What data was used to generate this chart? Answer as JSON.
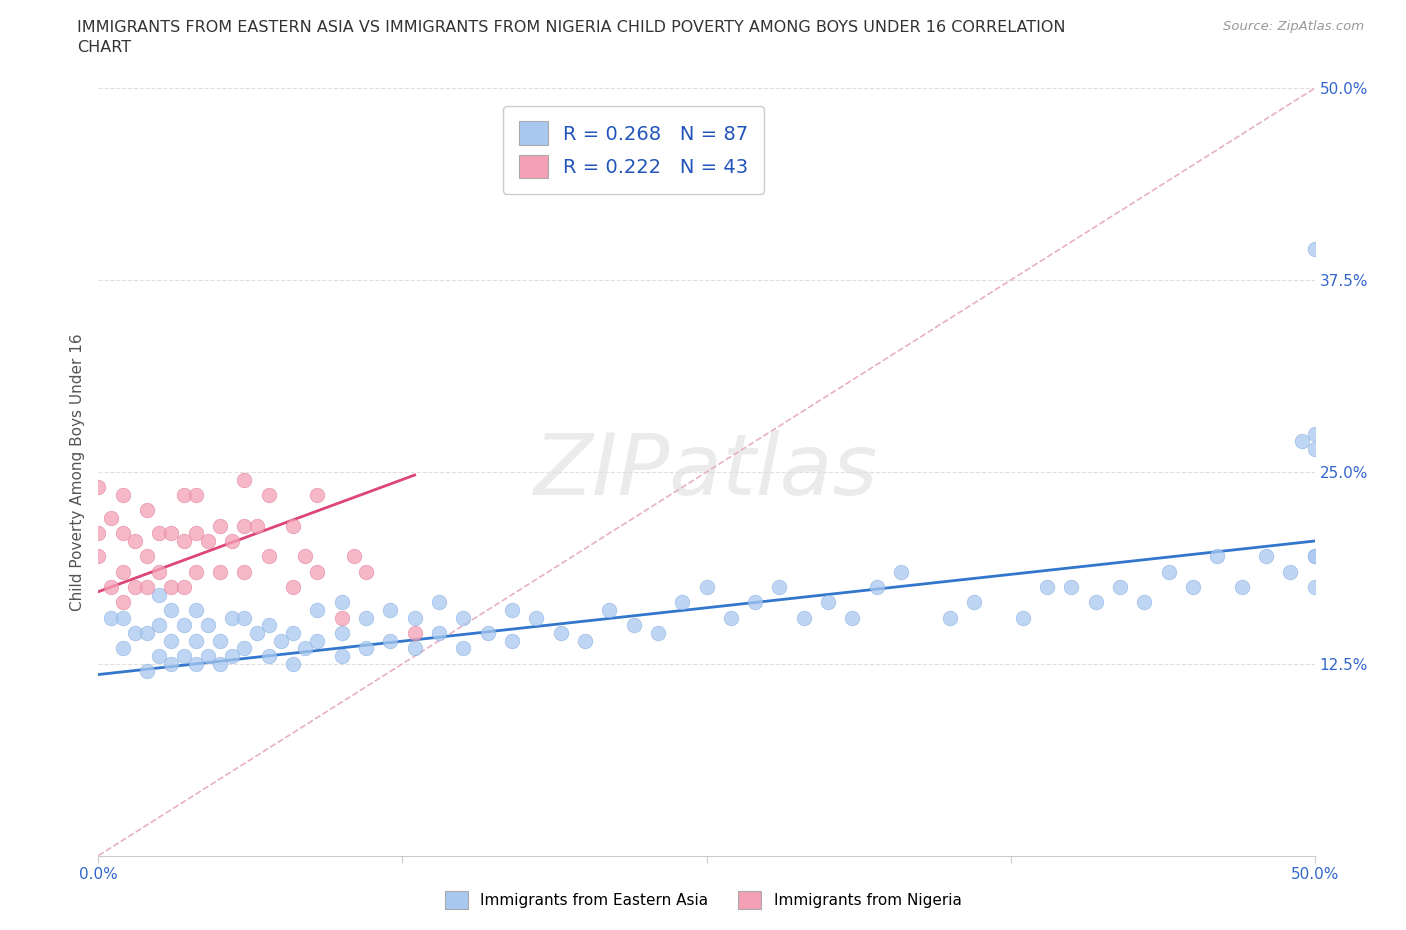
{
  "title_line1": "IMMIGRANTS FROM EASTERN ASIA VS IMMIGRANTS FROM NIGERIA CHILD POVERTY AMONG BOYS UNDER 16 CORRELATION",
  "title_line2": "CHART",
  "source_text": "Source: ZipAtlas.com",
  "ylabel": "Child Poverty Among Boys Under 16",
  "legend_blue_label": "Immigrants from Eastern Asia",
  "legend_pink_label": "Immigrants from Nigeria",
  "r_blue": 0.268,
  "n_blue": 87,
  "r_pink": 0.222,
  "n_pink": 43,
  "blue_color": "#a8c8f0",
  "pink_color": "#f4a0b5",
  "trendline_blue_color": "#3377cc",
  "trendline_pink_color": "#dd4477",
  "diag_color": "#e8b0c0",
  "grid_color": "#e0e0e0",
  "tick_label_color": "#3366cc",
  "watermark": "ZIPatlas",
  "xlim": [
    0.0,
    0.5
  ],
  "ylim": [
    0.0,
    0.5
  ],
  "blue_x": [
    0.005,
    0.01,
    0.01,
    0.015,
    0.02,
    0.02,
    0.025,
    0.025,
    0.025,
    0.03,
    0.03,
    0.03,
    0.035,
    0.035,
    0.04,
    0.04,
    0.04,
    0.045,
    0.045,
    0.05,
    0.05,
    0.055,
    0.055,
    0.06,
    0.06,
    0.065,
    0.07,
    0.07,
    0.075,
    0.08,
    0.08,
    0.085,
    0.09,
    0.09,
    0.1,
    0.1,
    0.1,
    0.11,
    0.11,
    0.12,
    0.12,
    0.13,
    0.13,
    0.14,
    0.14,
    0.15,
    0.15,
    0.16,
    0.17,
    0.17,
    0.18,
    0.19,
    0.2,
    0.21,
    0.22,
    0.23,
    0.24,
    0.25,
    0.26,
    0.27,
    0.28,
    0.29,
    0.3,
    0.31,
    0.32,
    0.33,
    0.35,
    0.36,
    0.38,
    0.39,
    0.4,
    0.41,
    0.42,
    0.43,
    0.44,
    0.45,
    0.46,
    0.47,
    0.48,
    0.49,
    0.495,
    0.5,
    0.5,
    0.5,
    0.5,
    0.5,
    0.5
  ],
  "blue_y": [
    0.155,
    0.135,
    0.155,
    0.145,
    0.12,
    0.145,
    0.13,
    0.15,
    0.17,
    0.125,
    0.14,
    0.16,
    0.13,
    0.15,
    0.125,
    0.14,
    0.16,
    0.13,
    0.15,
    0.125,
    0.14,
    0.13,
    0.155,
    0.135,
    0.155,
    0.145,
    0.13,
    0.15,
    0.14,
    0.125,
    0.145,
    0.135,
    0.14,
    0.16,
    0.13,
    0.145,
    0.165,
    0.135,
    0.155,
    0.14,
    0.16,
    0.135,
    0.155,
    0.145,
    0.165,
    0.135,
    0.155,
    0.145,
    0.14,
    0.16,
    0.155,
    0.145,
    0.14,
    0.16,
    0.15,
    0.145,
    0.165,
    0.175,
    0.155,
    0.165,
    0.175,
    0.155,
    0.165,
    0.155,
    0.175,
    0.185,
    0.155,
    0.165,
    0.155,
    0.175,
    0.175,
    0.165,
    0.175,
    0.165,
    0.185,
    0.175,
    0.195,
    0.175,
    0.195,
    0.185,
    0.27,
    0.175,
    0.275,
    0.195,
    0.395,
    0.265,
    0.195
  ],
  "pink_x": [
    0.0,
    0.0,
    0.0,
    0.005,
    0.005,
    0.01,
    0.01,
    0.01,
    0.01,
    0.015,
    0.015,
    0.02,
    0.02,
    0.02,
    0.025,
    0.025,
    0.03,
    0.03,
    0.035,
    0.035,
    0.035,
    0.04,
    0.04,
    0.04,
    0.045,
    0.05,
    0.05,
    0.055,
    0.06,
    0.06,
    0.06,
    0.065,
    0.07,
    0.07,
    0.08,
    0.08,
    0.085,
    0.09,
    0.09,
    0.1,
    0.105,
    0.11,
    0.13
  ],
  "pink_y": [
    0.195,
    0.21,
    0.24,
    0.175,
    0.22,
    0.165,
    0.185,
    0.21,
    0.235,
    0.175,
    0.205,
    0.175,
    0.195,
    0.225,
    0.185,
    0.21,
    0.175,
    0.21,
    0.175,
    0.205,
    0.235,
    0.185,
    0.21,
    0.235,
    0.205,
    0.185,
    0.215,
    0.205,
    0.185,
    0.215,
    0.245,
    0.215,
    0.195,
    0.235,
    0.175,
    0.215,
    0.195,
    0.185,
    0.235,
    0.155,
    0.195,
    0.185,
    0.145
  ],
  "blue_trend_x": [
    0.0,
    0.5
  ],
  "blue_trend_y": [
    0.118,
    0.205
  ],
  "pink_trend_x": [
    0.0,
    0.13
  ],
  "pink_trend_y": [
    0.172,
    0.248
  ]
}
